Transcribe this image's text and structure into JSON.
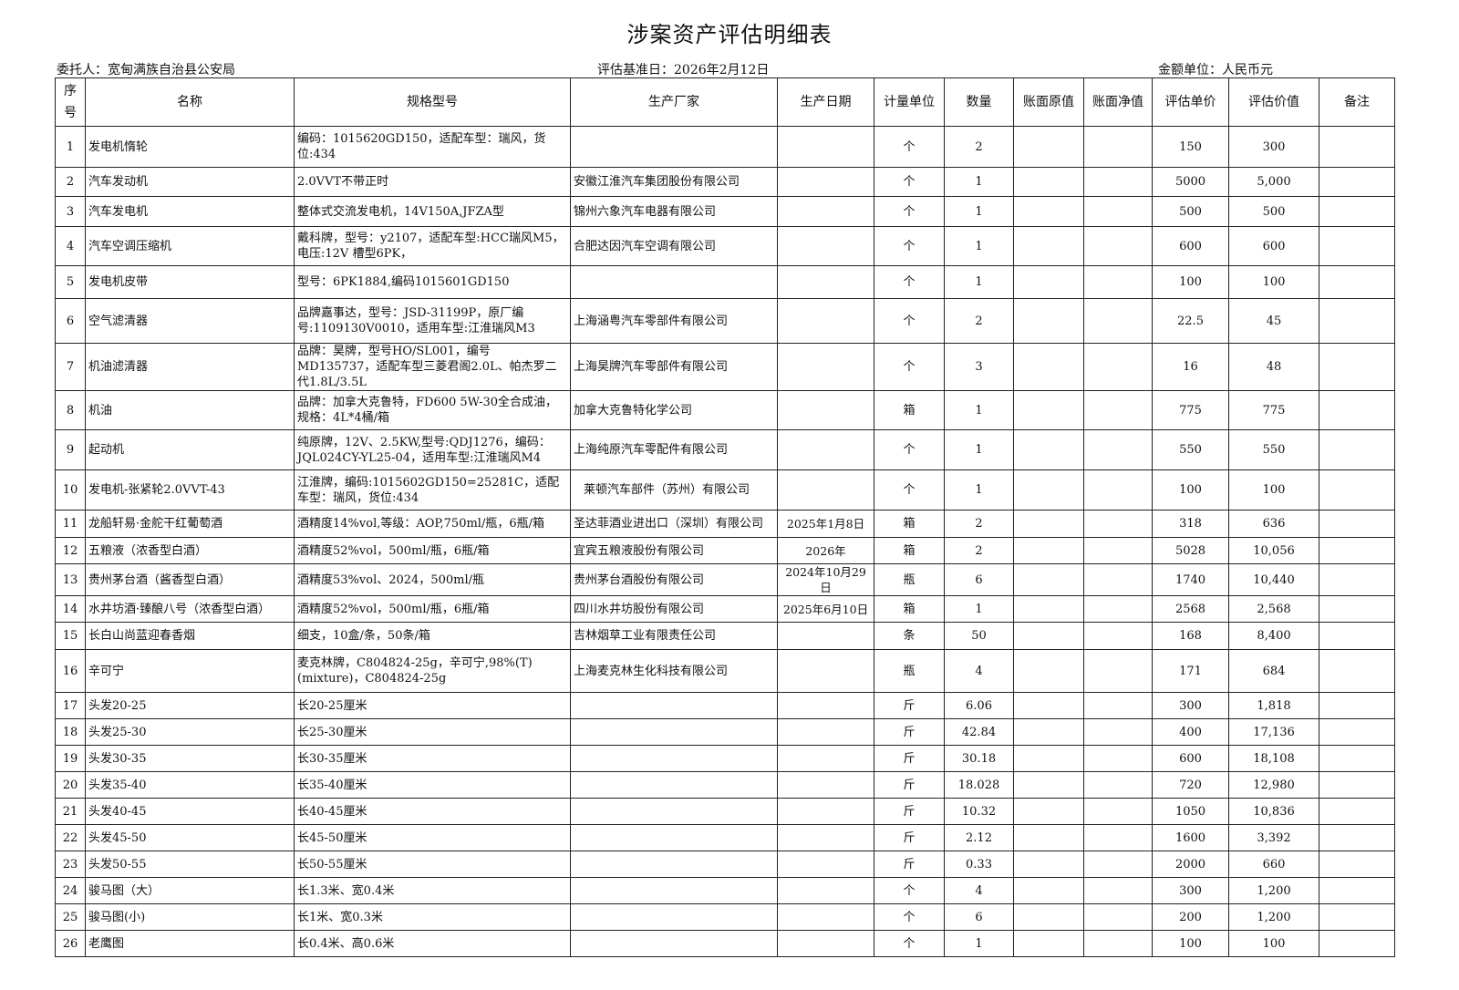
{
  "title": "涉案资产评估明细表",
  "meta": {
    "client": "委托人：宽甸满族自治县公安局",
    "base_date": "评估基准日：2026年2月12日",
    "currency": "金额单位：人民币元"
  },
  "headers": [
    "序号",
    "名称",
    "规格型号",
    "生产厂家",
    "生产日期",
    "计量单位",
    "数量",
    "账面原值",
    "账面净值",
    "评估单价",
    "评估价值",
    "备注"
  ],
  "rows": [
    [
      "1",
      "发电机惰轮",
      "编码：1015620GD150，适配车型：瑞风，货位:434",
      "",
      "",
      "个",
      "2",
      "",
      "",
      "150",
      "300",
      ""
    ],
    [
      "2",
      "汽车发动机",
      "2.0VVT不带正时",
      "安徽江淮汽车集团股份有限公司",
      "",
      "个",
      "1",
      "",
      "",
      "5000",
      "5,000",
      ""
    ],
    [
      "3",
      "汽车发电机",
      "整体式交流发电机，14V150A,JFZA型",
      "锦州六象汽车电器有限公司",
      "",
      "个",
      "1",
      "",
      "",
      "500",
      "500",
      ""
    ],
    [
      "4",
      "汽车空调压缩机",
      "戴科牌，型号：y2107，适配车型:HCC瑞风M5，电压:12V 槽型6PK，",
      "合肥达因汽车空调有限公司",
      "",
      "个",
      "1",
      "",
      "",
      "600",
      "600",
      ""
    ],
    [
      "5",
      "发电机皮带",
      "型号：6PK1884,编码1015601GD150",
      "",
      "",
      "个",
      "1",
      "",
      "",
      "100",
      "100",
      ""
    ],
    [
      "6",
      "空气滤清器",
      "品牌嘉事达，型号：JSD-31199P，原厂编号:1109130V0010，适用车型:江淮瑞风M3",
      "上海涵粤汽车零部件有限公司",
      "",
      "个",
      "2",
      "",
      "",
      "22.5",
      "45",
      ""
    ],
    [
      "7",
      "机油滤清器",
      "品牌：昊牌，型号HO/SL001，编号MD135737，适配车型三菱君阁2.0L、帕杰罗二代1.8L/3.5L",
      "上海昊牌汽车零部件有限公司",
      "",
      "个",
      "3",
      "",
      "",
      "16",
      "48",
      ""
    ],
    [
      "8",
      "机油",
      "品牌：加拿大克鲁特，FD600 5W-30全合成油，规格：4L*4桶/箱",
      "加拿大克鲁特化学公司",
      "",
      "箱",
      "1",
      "",
      "",
      "775",
      "775",
      ""
    ],
    [
      "9",
      "起动机",
      "纯原牌，12V、2.5KW,型号:QDJ1276，编码：JQL024CY-YL25-04，适用车型:江淮瑞风M4",
      "上海纯原汽车零配件有限公司",
      "",
      "个",
      "1",
      "",
      "",
      "550",
      "550",
      ""
    ],
    [
      "10",
      "发电机-张紧轮2.0VVT-43",
      "江淮牌，编码:1015602GD150=25281C，适配车型：瑞风，货位:434",
      "莱顿汽车部件（苏州）有限公司",
      "",
      "个",
      "1",
      "",
      "",
      "100",
      "100",
      ""
    ],
    [
      "11",
      "龙船轩易·金舵干红葡萄酒",
      "酒精度14%vol,等级：AOP,750ml/瓶，6瓶/箱",
      "圣达菲酒业进出口（深圳）有限公司",
      "2025年1月8日",
      "箱",
      "2",
      "",
      "",
      "318",
      "636",
      ""
    ],
    [
      "12",
      "五粮液（浓香型白酒）",
      "酒精度52%vol，500ml/瓶，6瓶/箱",
      "宜宾五粮液股份有限公司",
      "2026年",
      "箱",
      "2",
      "",
      "",
      "5028",
      "10,056",
      ""
    ],
    [
      "13",
      "贵州茅台酒（酱香型白酒）",
      "酒精度53%vol、2024，500ml/瓶",
      "贵州茅台酒股份有限公司",
      "2024年10月29日",
      "瓶",
      "6",
      "",
      "",
      "1740",
      "10,440",
      ""
    ],
    [
      "14",
      "水井坊酒·臻酿八号（浓香型白酒）",
      "酒精度52%vol，500ml/瓶，6瓶/箱",
      "四川水井坊股份有限公司",
      "2025年6月10日",
      "箱",
      "1",
      "",
      "",
      "2568",
      "2,568",
      ""
    ],
    [
      "15",
      "长白山尚蓝迎春香烟",
      "细支，10盒/条，50条/箱",
      "吉林烟草工业有限责任公司",
      "",
      "条",
      "50",
      "",
      "",
      "168",
      "8,400",
      ""
    ],
    [
      "16",
      "辛可宁",
      "麦克林牌，C804824-25g，辛可宁,98%(T)(mixture)，C804824-25g",
      "上海麦克林生化科技有限公司",
      "",
      "瓶",
      "4",
      "",
      "",
      "171",
      "684",
      ""
    ],
    [
      "17",
      "头发20-25",
      "长20-25厘米",
      "",
      "",
      "斤",
      "6.06",
      "",
      "",
      "300",
      "1,818",
      ""
    ],
    [
      "18",
      "头发25-30",
      "长25-30厘米",
      "",
      "",
      "斤",
      "42.84",
      "",
      "",
      "400",
      "17,136",
      ""
    ],
    [
      "19",
      "头发30-35",
      "长30-35厘米",
      "",
      "",
      "斤",
      "30.18",
      "",
      "",
      "600",
      "18,108",
      ""
    ],
    [
      "20",
      "头发35-40",
      "长35-40厘米",
      "",
      "",
      "斤",
      "18.028",
      "",
      "",
      "720",
      "12,980",
      ""
    ],
    [
      "21",
      "头发40-45",
      "长40-45厘米",
      "",
      "",
      "斤",
      "10.32",
      "",
      "",
      "1050",
      "10,836",
      ""
    ],
    [
      "22",
      "头发45-50",
      "长45-50厘米",
      "",
      "",
      "斤",
      "2.12",
      "",
      "",
      "1600",
      "3,392",
      ""
    ],
    [
      "23",
      "头发50-55",
      "长50-55厘米",
      "",
      "",
      "斤",
      "0.33",
      "",
      "",
      "2000",
      "660",
      ""
    ],
    [
      "24",
      "骏马图（大）",
      "长1.3米、宽0.4米",
      "",
      "",
      "个",
      "4",
      "",
      "",
      "300",
      "1,200",
      ""
    ],
    [
      "25",
      "骏马图(小)",
      "长1米、宽0.3米",
      "",
      "",
      "个",
      "6",
      "",
      "",
      "200",
      "1,200",
      ""
    ],
    [
      "26",
      "老鹰图",
      "长0.4米、高0.6米",
      "",
      "",
      "个",
      "1",
      "",
      "",
      "100",
      "100",
      ""
    ]
  ]
}
